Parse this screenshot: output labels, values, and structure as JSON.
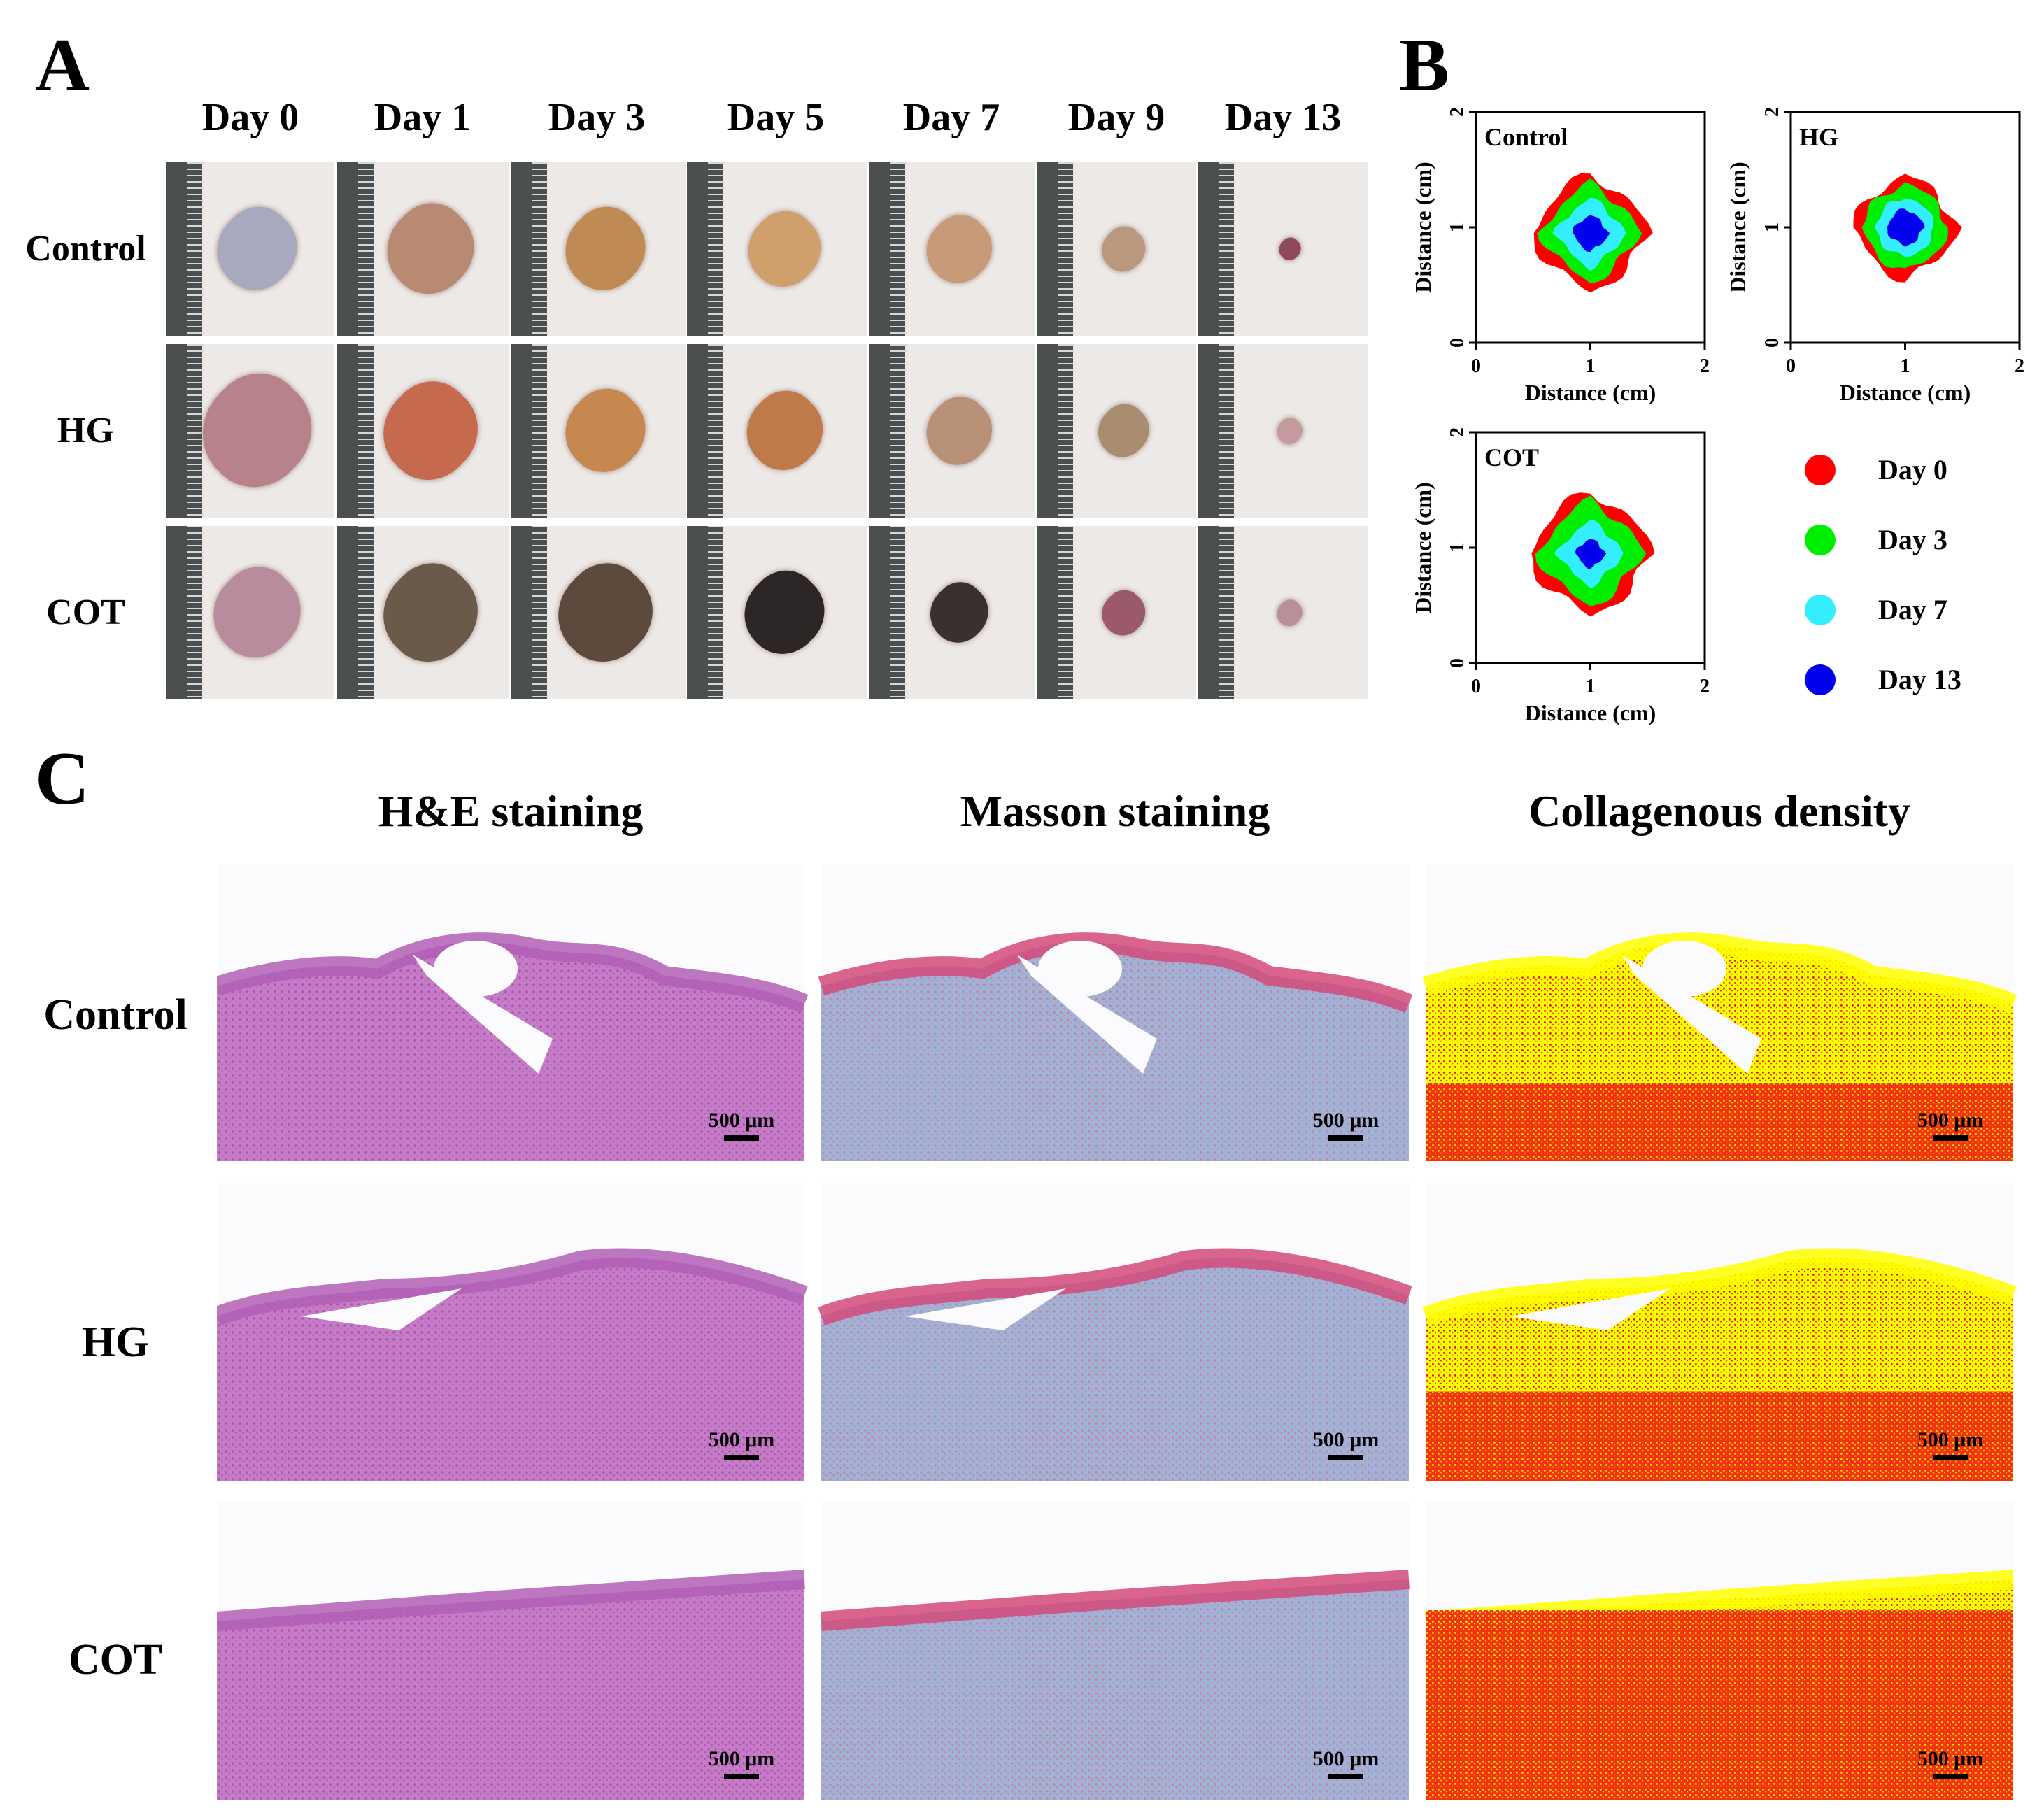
{
  "panelA": {
    "letter": "A",
    "days": [
      "Day 0",
      "Day 1",
      "Day 3",
      "Day 5",
      "Day 7",
      "Day 9",
      "Day 13"
    ],
    "rows": [
      "Control",
      "HG",
      "COT"
    ],
    "colors": {
      "skin": "#ece9e6",
      "ruler": "#4b4f4f",
      "wound": {
        "Control": [
          "#a8a9bf",
          "#b98a72",
          "#c08a54",
          "#d0a06c",
          "#c79a78",
          "#b9987e",
          "#8f4a5a"
        ],
        "HG": [
          "#b8828a",
          "#c56a4e",
          "#c6884f",
          "#c07a4a",
          "#b99179",
          "#a88d6e",
          "#c49a9c"
        ],
        "COT": [
          "#b88c9c",
          "#6a5a4a",
          "#5e4a3c",
          "#2c2626",
          "#3a3030",
          "#9a5a6a",
          "#b8909a"
        ]
      }
    }
  },
  "panelB": {
    "letter": "B",
    "axis_label": "Distance (cm)",
    "ticks": [
      "0",
      "1",
      "2"
    ],
    "legend": [
      {
        "label": "Day 0",
        "color": "#ff0000"
      },
      {
        "label": "Day 3",
        "color": "#00ee00"
      },
      {
        "label": "Day 7",
        "color": "#33eeff"
      },
      {
        "label": "Day 13",
        "color": "#0000ee"
      }
    ],
    "plots": [
      {
        "group": "Control",
        "radii_cm": [
          0.52,
          0.43,
          0.3,
          0.16
        ],
        "center_cm": [
          1.0,
          0.95
        ]
      },
      {
        "group": "HG",
        "radii_cm": [
          0.47,
          0.4,
          0.28,
          0.17
        ],
        "center_cm": [
          1.0,
          1.0
        ]
      },
      {
        "group": "COT",
        "radii_cm": [
          0.55,
          0.46,
          0.28,
          0.13
        ],
        "center_cm": [
          1.0,
          0.95
        ]
      }
    ]
  },
  "panelC": {
    "letter": "C",
    "columns": [
      "H&E staining",
      "Masson staining",
      "Collagenous density"
    ],
    "rows": [
      "Control",
      "HG",
      "COT"
    ],
    "scale_bar": "500 μm",
    "colors": {
      "he": "#c67bc6",
      "masson_blue": "#9fb3d8",
      "masson_red": "#d24a7a",
      "collagen_yellow": "#ffff00",
      "collagen_red": "#ee1010"
    },
    "collagen_red_fraction": [
      0.35,
      0.4,
      0.85
    ]
  }
}
